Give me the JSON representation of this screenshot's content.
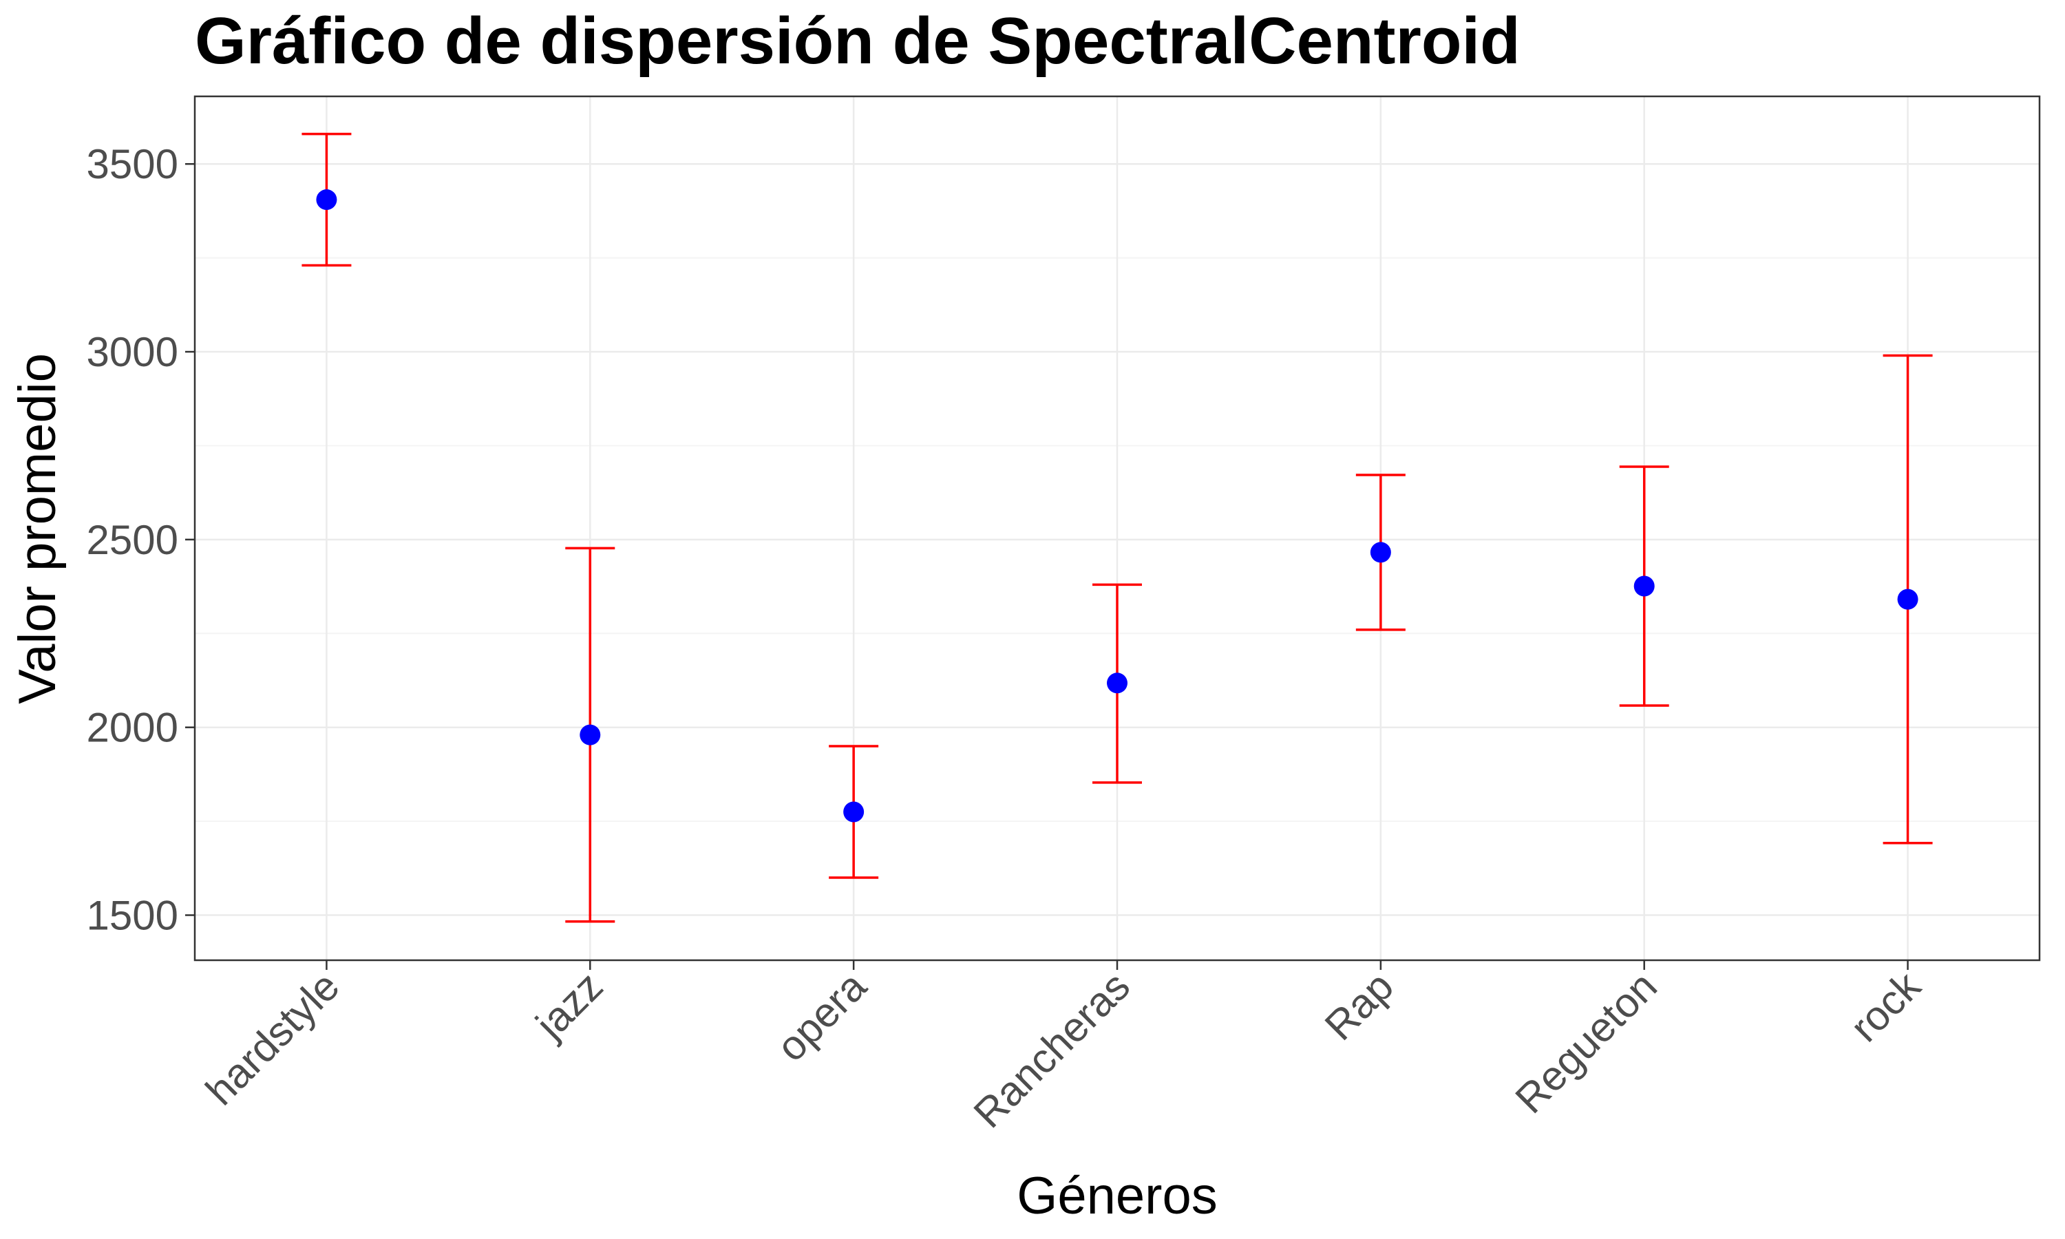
{
  "chart_data": {
    "type": "scatter",
    "title": "Gráfico de dispersión de SpectralCentroid",
    "xlabel": "Géneros",
    "ylabel": "Valor promedio",
    "categories": [
      "hardstyle",
      "jazz",
      "opera",
      "Rancheras",
      "Rap",
      "Regueton",
      "rock"
    ],
    "series": [
      {
        "values": [
          3405,
          1980,
          1775,
          2118,
          2466,
          2376,
          2341
        ],
        "error_low": [
          3230,
          1483,
          1600,
          1853,
          2260,
          2058,
          1692
        ],
        "error_high": [
          3580,
          2477,
          1950,
          2380,
          2672,
          2694,
          2990
        ],
        "point_color": "#0000ff",
        "error_color": "#ff0000"
      }
    ],
    "yticks": [
      1500,
      2000,
      2500,
      3000,
      3500
    ],
    "ylim": [
      1380,
      3680
    ],
    "grid": true,
    "legend": "none"
  }
}
